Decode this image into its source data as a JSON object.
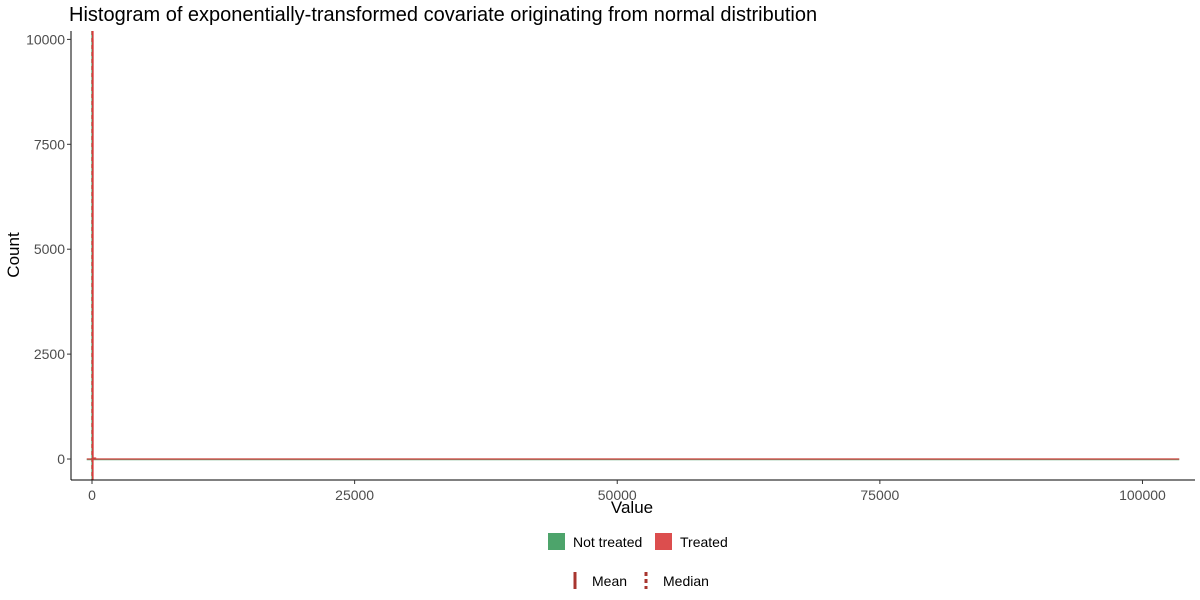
{
  "chart_data": {
    "type": "histogram",
    "title": "Histogram of exponentially-transformed covariate originating from normal distribution",
    "xlabel": "Value",
    "ylabel": "Count",
    "xlim": [
      -2000,
      105000
    ],
    "ylim": [
      -500,
      10200
    ],
    "x_ticks": [
      0,
      25000,
      50000,
      75000,
      100000
    ],
    "x_tick_labels": [
      "0",
      "25000",
      "50000",
      "75000",
      "100000"
    ],
    "y_ticks": [
      0,
      2500,
      5000,
      7500,
      10000
    ],
    "y_tick_labels": [
      "0",
      "2500",
      "5000",
      "7500",
      "10000"
    ],
    "baseline": {
      "x_min": -500,
      "x_max": 103500,
      "y": 0
    },
    "series": [
      {
        "name": "Not treated",
        "color": "#3a9a5b",
        "bins": [
          {
            "x0": 0,
            "x1": 100,
            "count": 10000
          },
          {
            "x0": 100,
            "x1": 300,
            "count": 30
          }
        ],
        "mean": 20,
        "median": 0
      },
      {
        "name": "Treated",
        "color": "#d83b3b",
        "bins": [
          {
            "x0": 0,
            "x1": 150,
            "count": 10000
          },
          {
            "x0": 150,
            "x1": 400,
            "count": 40
          }
        ],
        "mean": 80,
        "median": 20
      }
    ],
    "legend_fill": {
      "items": [
        {
          "label": "Not treated",
          "color": "#3a9a5b"
        },
        {
          "label": "Treated",
          "color": "#d83b3b"
        }
      ]
    },
    "legend_line": {
      "items": [
        {
          "label": "Mean",
          "style": "solid"
        },
        {
          "label": "Median",
          "style": "dashed"
        }
      ],
      "color": "#a8352f"
    }
  }
}
